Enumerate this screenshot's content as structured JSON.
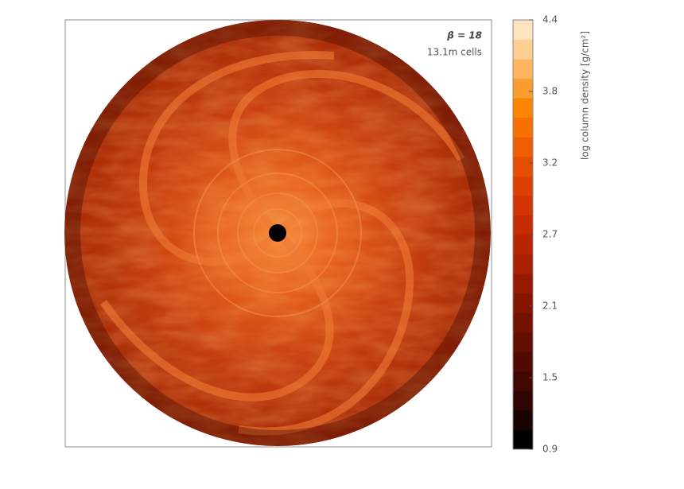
{
  "chart_data": {
    "type": "image",
    "annotations": [
      "β = 18",
      "13.1m cells"
    ],
    "colorbar_label": "log column density [g/cm²]",
    "ylim": [
      0.9,
      4.4
    ],
    "yticks": [
      0.9,
      {
        "value": 1.483,
        "label": "1.5"
      },
      {
        "value": 2.067,
        "label": "2.1"
      },
      {
        "value": 2.65,
        "label": "2.7"
      },
      {
        "value": 3.233,
        "label": "3.2"
      },
      {
        "value": 3.817,
        "label": "3.8"
      },
      4.4
    ],
    "colors": [
      "#000000",
      "#1a0300",
      "#2e0500",
      "#3f0700",
      "#500a00",
      "#620e00",
      "#731200",
      "#851500",
      "#961a00",
      "#a82000",
      "#b92500",
      "#c62c00",
      "#d23400",
      "#dc3f00",
      "#e54d00",
      "#ef5d00",
      "#f77000",
      "#fb8500",
      "#fc9c30",
      "#fdb560",
      "#fecd90",
      "#fee4bd"
    ]
  }
}
